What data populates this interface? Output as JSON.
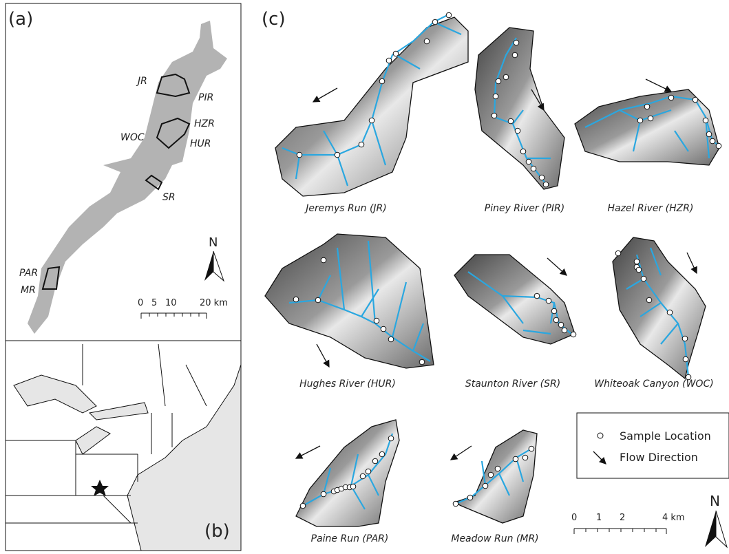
{
  "panel_a": {
    "label": "(a)",
    "watersheds": [
      "JR",
      "PIR",
      "HZR",
      "WOC",
      "HUR",
      "SR",
      "PAR",
      "MR"
    ],
    "north": "N",
    "scale_labels": [
      "0",
      "5",
      "10",
      "20 km"
    ]
  },
  "panel_b": {
    "label": "(b)"
  },
  "panel_c": {
    "label": "(c)",
    "watersheds": [
      "Jeremys Run (JR)",
      "Piney River (PIR)",
      "Hazel River (HZR)",
      "Hughes River (HUR)",
      "Staunton River (SR)",
      "Whiteoak Canyon (WOC)",
      "Paine Run (PAR)",
      "Meadow Run (MR)"
    ],
    "legend": [
      "Sample Location",
      "Flow Direction"
    ],
    "north": "N",
    "scale_labels": [
      "0",
      "1",
      "2",
      "4 km"
    ]
  }
}
